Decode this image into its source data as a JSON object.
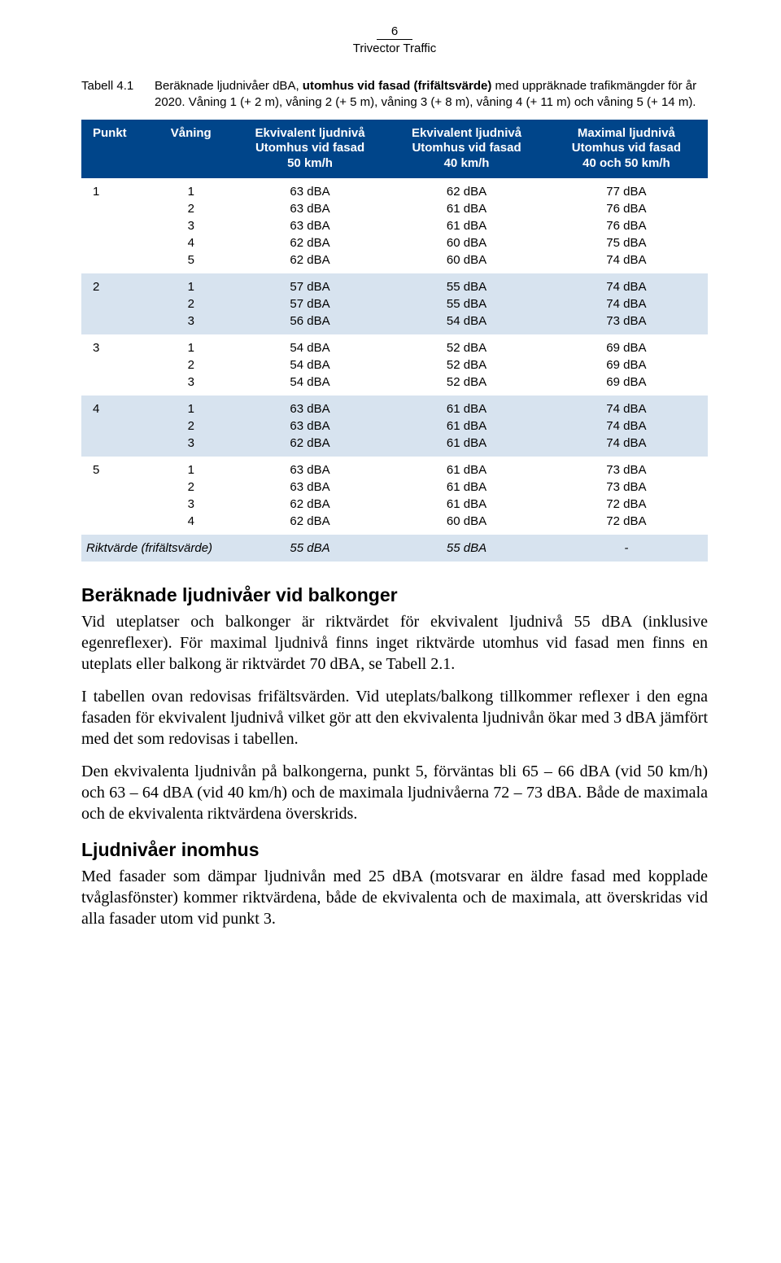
{
  "header": {
    "page_number": "6",
    "subtitle": "Trivector Traffic"
  },
  "tabell": {
    "label": "Tabell 4.1",
    "caption_prefix": "Beräknade ljudnivåer dBA, ",
    "caption_bold": "utomhus vid fasad (frifältsvärde)",
    "caption_suffix": " med uppräknade trafikmängder för år 2020. Våning 1 (+ 2 m), våning 2 (+ 5 m), våning 3 (+ 8 m), våning 4 (+ 11 m) och våning 5 (+ 14 m)."
  },
  "table": {
    "headers": {
      "c0": "Punkt",
      "c1": "Våning",
      "c2a": "Ekvivalent ljudnivå",
      "c2b": "Utomhus vid fasad",
      "c2c": "50 km/h",
      "c3a": "Ekvivalent ljudnivå",
      "c3b": "Utomhus vid fasad",
      "c3c": "40 km/h",
      "c4a": "Maximal ljudnivå",
      "c4b": "Utomhus vid fasad",
      "c4c": "40 och 50 km/h"
    },
    "groups": [
      {
        "punkt": "1",
        "band": false,
        "rows": [
          [
            "1",
            "63 dBA",
            "62 dBA",
            "77 dBA"
          ],
          [
            "2",
            "63 dBA",
            "61 dBA",
            "76 dBA"
          ],
          [
            "3",
            "63 dBA",
            "61 dBA",
            "76 dBA"
          ],
          [
            "4",
            "62 dBA",
            "60 dBA",
            "75 dBA"
          ],
          [
            "5",
            "62 dBA",
            "60 dBA",
            "74 dBA"
          ]
        ]
      },
      {
        "punkt": "2",
        "band": true,
        "rows": [
          [
            "1",
            "57 dBA",
            "55 dBA",
            "74 dBA"
          ],
          [
            "2",
            "57 dBA",
            "55 dBA",
            "74 dBA"
          ],
          [
            "3",
            "56 dBA",
            "54 dBA",
            "73 dBA"
          ]
        ]
      },
      {
        "punkt": "3",
        "band": false,
        "rows": [
          [
            "1",
            "54 dBA",
            "52 dBA",
            "69 dBA"
          ],
          [
            "2",
            "54 dBA",
            "52 dBA",
            "69 dBA"
          ],
          [
            "3",
            "54 dBA",
            "52 dBA",
            "69 dBA"
          ]
        ]
      },
      {
        "punkt": "4",
        "band": true,
        "rows": [
          [
            "1",
            "63 dBA",
            "61 dBA",
            "74 dBA"
          ],
          [
            "2",
            "63 dBA",
            "61 dBA",
            "74 dBA"
          ],
          [
            "3",
            "62 dBA",
            "61 dBA",
            "74 dBA"
          ]
        ]
      },
      {
        "punkt": "5",
        "band": false,
        "rows": [
          [
            "1",
            "63 dBA",
            "61 dBA",
            "73 dBA"
          ],
          [
            "2",
            "63 dBA",
            "61 dBA",
            "73 dBA"
          ],
          [
            "3",
            "62 dBA",
            "61 dBA",
            "72 dBA"
          ],
          [
            "4",
            "62 dBA",
            "60 dBA",
            "72 dBA"
          ]
        ]
      }
    ],
    "riktvarde": {
      "label": "Riktvärde (frifältsvärde)",
      "v50": "55 dBA",
      "v40": "55 dBA",
      "max": "-"
    }
  },
  "sections": {
    "s1_title": "Beräknade ljudnivåer vid balkonger",
    "s1_p1": "Vid uteplatser och balkonger är riktvärdet för ekvivalent ljudnivå 55 dBA (inklusive egenreflexer). För maximal ljudnivå finns inget riktvärde utomhus vid fasad men finns en uteplats eller balkong är riktvärdet 70 dBA, se Tabell 2.1.",
    "s1_p2": "I tabellen ovan redovisas frifältsvärden. Vid uteplats/balkong tillkommer reflexer i den egna fasaden för ekvivalent ljudnivå vilket gör att den ekvivalenta ljudnivån ökar med 3 dBA jämfört med det som redovisas i tabellen.",
    "s1_p3": "Den ekvivalenta ljudnivån på balkongerna, punkt 5, förväntas bli 65 – 66 dBA (vid 50 km/h) och 63 – 64 dBA (vid 40 km/h) och de maximala ljudnivåerna 72 – 73 dBA. Både de maximala och de ekvivalenta riktvärdena överskrids.",
    "s2_title": "Ljudnivåer inomhus",
    "s2_p1": "Med fasader som dämpar ljudnivån med 25 dBA (motsvarar en äldre fasad med kopplade tvåglasfönster) kommer riktvärdena, både de ekvivalenta och de maximala, att överskridas vid alla fasader utom vid punkt 3."
  }
}
